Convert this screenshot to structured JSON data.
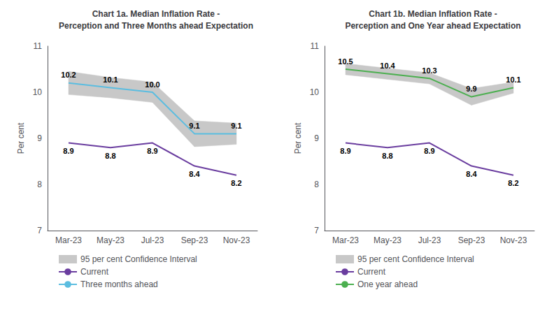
{
  "chart_data": [
    {
      "type": "line",
      "title": "Chart 1a. Median Inflation Rate -\nPerception and Three Months ahead Expectation",
      "categories": [
        "Mar-23",
        "May-23",
        "Jul-23",
        "Sep-23",
        "Nov-23"
      ],
      "y_label": "Per cent",
      "ylim": [
        7,
        11
      ],
      "yticks": [
        7,
        8,
        9,
        10,
        11
      ],
      "grid": false,
      "legend": "bottom",
      "data_labels": true,
      "series": [
        {
          "name": "95 per cent Confidence Interval",
          "type": "band",
          "color": "#c8c8c8",
          "lower": [
            9.95,
            9.88,
            9.78,
            8.82,
            8.87
          ],
          "upper": [
            10.45,
            10.32,
            10.22,
            9.38,
            9.33
          ]
        },
        {
          "name": "Current",
          "type": "line",
          "color": "#6a3d9f",
          "values": [
            8.9,
            8.8,
            8.9,
            8.4,
            8.2
          ]
        },
        {
          "name": "Three months ahead",
          "type": "line",
          "color": "#5bbde0",
          "values": [
            10.2,
            10.1,
            10.0,
            9.1,
            9.1
          ],
          "value_labels": [
            "10.2",
            "10.1",
            "10.0",
            "9.1",
            "9.1"
          ]
        }
      ]
    },
    {
      "type": "line",
      "title": "Chart 1b. Median Inflation Rate -\nPerception and One Year ahead Expectation",
      "categories": [
        "Mar-23",
        "May-23",
        "Jul-23",
        "Sep-23",
        "Nov-23"
      ],
      "y_label": "Per cent",
      "ylim": [
        7,
        11
      ],
      "yticks": [
        7,
        8,
        9,
        10,
        11
      ],
      "grid": false,
      "legend": "bottom",
      "data_labels": true,
      "series": [
        {
          "name": "95 per cent Confidence Interval",
          "type": "band",
          "color": "#c8c8c8",
          "lower": [
            10.38,
            10.28,
            10.18,
            9.72,
            9.98
          ],
          "upper": [
            10.62,
            10.52,
            10.42,
            10.08,
            10.22
          ]
        },
        {
          "name": "Current",
          "type": "line",
          "color": "#6a3d9f",
          "values": [
            8.9,
            8.8,
            8.9,
            8.4,
            8.2
          ]
        },
        {
          "name": "One year ahead",
          "type": "line",
          "color": "#4caf50",
          "values": [
            10.5,
            10.4,
            10.3,
            9.9,
            10.1
          ]
        }
      ]
    }
  ]
}
